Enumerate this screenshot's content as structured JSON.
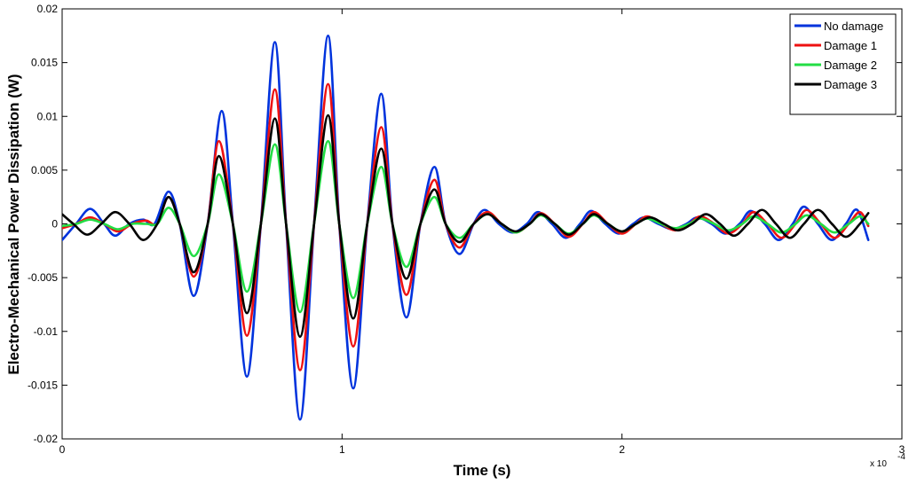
{
  "chart_data": {
    "type": "line",
    "xlabel": "Time (s)",
    "ylabel": "Electro-Mechanical Power Dissipation (W)",
    "x_multiplier_label": "x 10",
    "x_multiplier_exponent": "-4",
    "xlim": [
      0,
      3
    ],
    "ylim": [
      -0.02,
      0.02
    ],
    "x_ticks": [
      0,
      1,
      2,
      3
    ],
    "x_tick_labels": [
      "0",
      "1",
      "2",
      "3"
    ],
    "y_ticks": [
      -0.02,
      -0.015,
      -0.01,
      -0.005,
      0,
      0.005,
      0.01,
      0.015,
      0.02
    ],
    "y_tick_labels": [
      "-0.02",
      "-0.015",
      "-0.01",
      "-0.005",
      "0",
      "0.005",
      "0.01",
      "0.015",
      "0.02"
    ],
    "grid": false,
    "legend_position": "top-right",
    "series": [
      {
        "name": "No damage",
        "color": "#0033dd",
        "points": [
          [
            0.0,
            -0.0015
          ],
          [
            0.05,
            0.0
          ],
          [
            0.1,
            0.0014
          ],
          [
            0.15,
            0.0
          ],
          [
            0.19,
            -0.0011
          ],
          [
            0.24,
            0.0
          ],
          [
            0.29,
            0.0004
          ],
          [
            0.33,
            0.0
          ],
          [
            0.38,
            0.003
          ],
          [
            0.42,
            0.0
          ],
          [
            0.47,
            -0.0067
          ],
          [
            0.52,
            0.0
          ],
          [
            0.57,
            0.0105
          ],
          [
            0.61,
            0.0
          ],
          [
            0.66,
            -0.0142
          ],
          [
            0.71,
            0.0
          ],
          [
            0.76,
            0.0169
          ],
          [
            0.8,
            0.0
          ],
          [
            0.85,
            -0.0182
          ],
          [
            0.9,
            0.0
          ],
          [
            0.95,
            0.0175
          ],
          [
            0.99,
            0.0
          ],
          [
            1.04,
            -0.0153
          ],
          [
            1.09,
            0.0
          ],
          [
            1.14,
            0.0121
          ],
          [
            1.18,
            0.0
          ],
          [
            1.23,
            -0.0087
          ],
          [
            1.28,
            0.0
          ],
          [
            1.33,
            0.0053
          ],
          [
            1.37,
            0.0
          ],
          [
            1.42,
            -0.0028
          ],
          [
            1.47,
            0.0
          ],
          [
            1.51,
            0.0013
          ],
          [
            1.56,
            0.0
          ],
          [
            1.61,
            -0.0008
          ],
          [
            1.66,
            0.0
          ],
          [
            1.7,
            0.0011
          ],
          [
            1.75,
            0.0
          ],
          [
            1.8,
            -0.0013
          ],
          [
            1.85,
            0.0
          ],
          [
            1.89,
            0.0012
          ],
          [
            1.94,
            0.0
          ],
          [
            1.99,
            -0.0009
          ],
          [
            2.04,
            0.0
          ],
          [
            2.08,
            0.0006
          ],
          [
            2.13,
            0.0
          ],
          [
            2.18,
            -0.0005
          ],
          [
            2.23,
            0.0
          ],
          [
            2.27,
            0.0006
          ],
          [
            2.32,
            0.0
          ],
          [
            2.37,
            -0.0009
          ],
          [
            2.42,
            0.0
          ],
          [
            2.46,
            0.0012
          ],
          [
            2.51,
            0.0
          ],
          [
            2.56,
            -0.0015
          ],
          [
            2.61,
            0.0
          ],
          [
            2.65,
            0.0016
          ],
          [
            2.7,
            0.0
          ],
          [
            2.75,
            -0.0015
          ],
          [
            2.8,
            0.0
          ],
          [
            2.84,
            0.0013
          ],
          [
            2.88,
            -0.0015
          ]
        ]
      },
      {
        "name": "Damage 1",
        "color": "#ee1111",
        "points": [
          [
            0.0,
            -0.0004
          ],
          [
            0.05,
            0.0
          ],
          [
            0.1,
            0.0006
          ],
          [
            0.15,
            0.0
          ],
          [
            0.2,
            -0.0007
          ],
          [
            0.25,
            0.0
          ],
          [
            0.3,
            0.0003
          ],
          [
            0.34,
            0.0
          ],
          [
            0.38,
            0.0025
          ],
          [
            0.42,
            0.0
          ],
          [
            0.47,
            -0.0049
          ],
          [
            0.52,
            0.0
          ],
          [
            0.56,
            0.0077
          ],
          [
            0.61,
            0.0
          ],
          [
            0.66,
            -0.0104
          ],
          [
            0.71,
            0.0
          ],
          [
            0.76,
            0.0125
          ],
          [
            0.8,
            0.0
          ],
          [
            0.85,
            -0.0136
          ],
          [
            0.9,
            0.0
          ],
          [
            0.95,
            0.013
          ],
          [
            0.99,
            0.0
          ],
          [
            1.04,
            -0.0114
          ],
          [
            1.09,
            0.0
          ],
          [
            1.14,
            0.009
          ],
          [
            1.18,
            0.0
          ],
          [
            1.23,
            -0.0066
          ],
          [
            1.28,
            0.0
          ],
          [
            1.33,
            0.0041
          ],
          [
            1.37,
            0.0
          ],
          [
            1.42,
            -0.0022
          ],
          [
            1.47,
            0.0
          ],
          [
            1.52,
            0.0011
          ],
          [
            1.57,
            0.0
          ],
          [
            1.62,
            -0.0008
          ],
          [
            1.67,
            0.0
          ],
          [
            1.71,
            0.001
          ],
          [
            1.76,
            0.0
          ],
          [
            1.81,
            -0.0012
          ],
          [
            1.86,
            0.0
          ],
          [
            1.9,
            0.0011
          ],
          [
            1.95,
            0.0
          ],
          [
            2.0,
            -0.0009
          ],
          [
            2.05,
            0.0
          ],
          [
            2.09,
            0.0007
          ],
          [
            2.14,
            0.0
          ],
          [
            2.19,
            -0.0006
          ],
          [
            2.24,
            0.0
          ],
          [
            2.28,
            0.0007
          ],
          [
            2.33,
            0.0
          ],
          [
            2.38,
            -0.0009
          ],
          [
            2.43,
            0.0
          ],
          [
            2.47,
            0.0011
          ],
          [
            2.52,
            0.0
          ],
          [
            2.57,
            -0.0013
          ],
          [
            2.62,
            0.0
          ],
          [
            2.66,
            0.0013
          ],
          [
            2.71,
            0.0
          ],
          [
            2.76,
            -0.0013
          ],
          [
            2.81,
            0.0
          ],
          [
            2.85,
            0.0011
          ],
          [
            2.88,
            -0.0002
          ]
        ]
      },
      {
        "name": "Damage 2",
        "color": "#22dd44",
        "points": [
          [
            0.0,
            -0.0002
          ],
          [
            0.05,
            0.0
          ],
          [
            0.1,
            0.0004
          ],
          [
            0.15,
            0.0
          ],
          [
            0.2,
            -0.0005
          ],
          [
            0.25,
            0.0
          ],
          [
            0.3,
            0.0
          ],
          [
            0.34,
            0.0
          ],
          [
            0.38,
            0.0015
          ],
          [
            0.42,
            0.0
          ],
          [
            0.47,
            -0.003
          ],
          [
            0.52,
            0.0
          ],
          [
            0.56,
            0.0046
          ],
          [
            0.61,
            0.0
          ],
          [
            0.66,
            -0.0063
          ],
          [
            0.71,
            0.0
          ],
          [
            0.76,
            0.0074
          ],
          [
            0.8,
            0.0
          ],
          [
            0.85,
            -0.0082
          ],
          [
            0.9,
            0.0
          ],
          [
            0.95,
            0.0077
          ],
          [
            0.99,
            0.0
          ],
          [
            1.04,
            -0.0069
          ],
          [
            1.09,
            0.0
          ],
          [
            1.14,
            0.0053
          ],
          [
            1.18,
            0.0
          ],
          [
            1.23,
            -0.004
          ],
          [
            1.28,
            0.0
          ],
          [
            1.33,
            0.0025
          ],
          [
            1.37,
            0.0
          ],
          [
            1.42,
            -0.0013
          ],
          [
            1.47,
            0.0
          ],
          [
            1.52,
            0.0009
          ],
          [
            1.57,
            0.0
          ],
          [
            1.62,
            -0.0008
          ],
          [
            1.67,
            0.0
          ],
          [
            1.71,
            0.0008
          ],
          [
            1.76,
            0.0
          ],
          [
            1.81,
            -0.0009
          ],
          [
            1.86,
            0.0
          ],
          [
            1.9,
            0.0008
          ],
          [
            1.95,
            0.0
          ],
          [
            2.0,
            -0.0007
          ],
          [
            2.05,
            0.0
          ],
          [
            2.09,
            0.0005
          ],
          [
            2.14,
            0.0
          ],
          [
            2.19,
            -0.0004
          ],
          [
            2.24,
            0.0
          ],
          [
            2.28,
            0.0005
          ],
          [
            2.33,
            0.0
          ],
          [
            2.38,
            -0.0006
          ],
          [
            2.43,
            0.0
          ],
          [
            2.47,
            0.0007
          ],
          [
            2.52,
            0.0
          ],
          [
            2.57,
            -0.0008
          ],
          [
            2.62,
            0.0
          ],
          [
            2.66,
            0.0008
          ],
          [
            2.71,
            0.0
          ],
          [
            2.76,
            -0.0008
          ],
          [
            2.81,
            0.0
          ],
          [
            2.85,
            0.0007
          ],
          [
            2.88,
            0.0
          ]
        ]
      },
      {
        "name": "Damage 3",
        "color": "#000000",
        "points": [
          [
            0.0,
            0.0009
          ],
          [
            0.04,
            0.0
          ],
          [
            0.09,
            -0.001
          ],
          [
            0.14,
            0.0
          ],
          [
            0.19,
            0.0011
          ],
          [
            0.24,
            0.0
          ],
          [
            0.29,
            -0.0015
          ],
          [
            0.34,
            0.0
          ],
          [
            0.38,
            0.0025
          ],
          [
            0.42,
            0.0
          ],
          [
            0.47,
            -0.0045
          ],
          [
            0.52,
            0.0
          ],
          [
            0.56,
            0.0063
          ],
          [
            0.61,
            0.0
          ],
          [
            0.66,
            -0.0083
          ],
          [
            0.71,
            0.0
          ],
          [
            0.76,
            0.0098
          ],
          [
            0.8,
            0.0
          ],
          [
            0.85,
            -0.0105
          ],
          [
            0.9,
            0.0
          ],
          [
            0.95,
            0.0101
          ],
          [
            0.99,
            0.0
          ],
          [
            1.04,
            -0.0088
          ],
          [
            1.09,
            0.0
          ],
          [
            1.14,
            0.007
          ],
          [
            1.18,
            0.0
          ],
          [
            1.23,
            -0.0051
          ],
          [
            1.28,
            0.0
          ],
          [
            1.33,
            0.0032
          ],
          [
            1.37,
            0.0
          ],
          [
            1.42,
            -0.0017
          ],
          [
            1.47,
            0.0
          ],
          [
            1.52,
            0.0009
          ],
          [
            1.57,
            0.0
          ],
          [
            1.62,
            -0.0007
          ],
          [
            1.67,
            0.0
          ],
          [
            1.71,
            0.0009
          ],
          [
            1.76,
            0.0
          ],
          [
            1.81,
            -0.001
          ],
          [
            1.86,
            0.0
          ],
          [
            1.9,
            0.0009
          ],
          [
            1.95,
            0.0
          ],
          [
            2.0,
            -0.0007
          ],
          [
            2.05,
            0.0
          ],
          [
            2.1,
            0.0006
          ],
          [
            2.15,
            0.0
          ],
          [
            2.2,
            -0.0006
          ],
          [
            2.25,
            0.0
          ],
          [
            2.3,
            0.0009
          ],
          [
            2.35,
            0.0
          ],
          [
            2.4,
            -0.0011
          ],
          [
            2.45,
            0.0
          ],
          [
            2.5,
            0.0013
          ],
          [
            2.55,
            0.0
          ],
          [
            2.6,
            -0.0013
          ],
          [
            2.65,
            0.0
          ],
          [
            2.7,
            0.0013
          ],
          [
            2.75,
            0.0
          ],
          [
            2.8,
            -0.0012
          ],
          [
            2.85,
            0.0
          ],
          [
            2.88,
            0.001
          ]
        ]
      }
    ]
  }
}
